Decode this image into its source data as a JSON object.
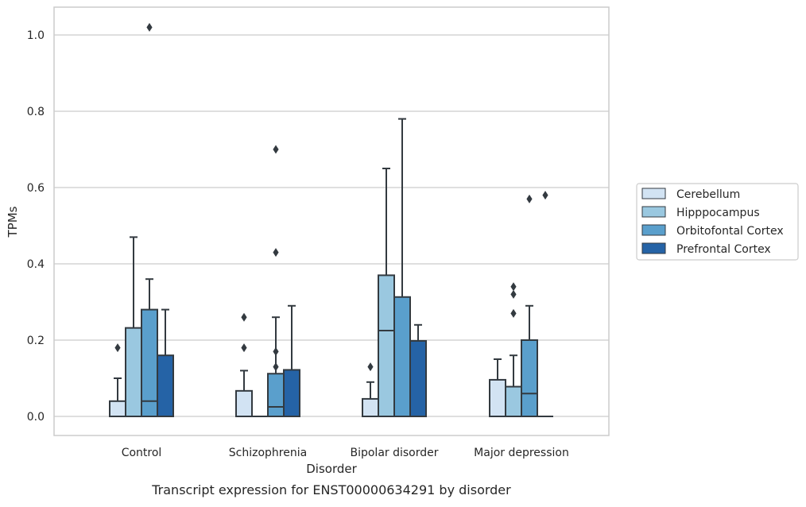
{
  "chart_data": {
    "type": "box",
    "title": "Transcript expression for ENST00000634291 by disorder",
    "xlabel": "Disorder",
    "ylabel": "TPMs",
    "ylim": [
      -0.05,
      1.07
    ],
    "yticks": [
      "0.0",
      "0.2",
      "0.4",
      "0.6",
      "0.8",
      "1.0"
    ],
    "ytick_values": [
      0.0,
      0.2,
      0.4,
      0.6,
      0.8,
      1.0
    ],
    "grid": true,
    "legend_position": "center-right",
    "categories": [
      "Control",
      "Schizophrenia",
      "Bipolar disorder",
      "Major depression"
    ],
    "series": [
      {
        "name": "Cerebellum",
        "color": "#d2e3f3",
        "boxes": [
          {
            "q1": 0.0,
            "median": 0.0,
            "q3": 0.04,
            "whisker_low": 0.0,
            "whisker_high": 0.1,
            "outliers": [
              0.18
            ]
          },
          {
            "q1": 0.0,
            "median": 0.0,
            "q3": 0.067,
            "whisker_low": 0.0,
            "whisker_high": 0.12,
            "outliers": [
              0.18,
              0.26
            ]
          },
          {
            "q1": 0.0,
            "median": 0.0,
            "q3": 0.046,
            "whisker_low": 0.0,
            "whisker_high": 0.09,
            "outliers": [
              0.13
            ]
          },
          {
            "q1": 0.0,
            "median": 0.0,
            "q3": 0.096,
            "whisker_low": 0.0,
            "whisker_high": 0.15,
            "outliers": []
          }
        ]
      },
      {
        "name": "Hipppocampus",
        "color": "#9ac8e0",
        "boxes": [
          {
            "q1": 0.0,
            "median": 0.0,
            "q3": 0.232,
            "whisker_low": 0.0,
            "whisker_high": 0.47,
            "outliers": []
          },
          {
            "q1": 0.0,
            "median": 0.0,
            "q3": 0.0,
            "whisker_low": 0.0,
            "whisker_high": 0.0,
            "outliers": []
          },
          {
            "q1": 0.0,
            "median": 0.225,
            "q3": 0.37,
            "whisker_low": 0.0,
            "whisker_high": 0.65,
            "outliers": []
          },
          {
            "q1": 0.0,
            "median": 0.0,
            "q3": 0.078,
            "whisker_low": 0.0,
            "whisker_high": 0.16,
            "outliers": [
              0.27,
              0.32,
              0.34
            ]
          }
        ]
      },
      {
        "name": "Orbitofontal Cortex",
        "color": "#5a9fcc",
        "boxes": [
          {
            "q1": 0.0,
            "median": 0.04,
            "q3": 0.28,
            "whisker_low": 0.0,
            "whisker_high": 0.36,
            "outliers": [
              1.02
            ]
          },
          {
            "q1": 0.0,
            "median": 0.025,
            "q3": 0.112,
            "whisker_low": 0.0,
            "whisker_high": 0.26,
            "outliers": [
              0.13,
              0.17,
              0.43,
              0.7
            ]
          },
          {
            "q1": 0.0,
            "median": 0.0,
            "q3": 0.313,
            "whisker_low": 0.0,
            "whisker_high": 0.78,
            "outliers": []
          },
          {
            "q1": 0.0,
            "median": 0.06,
            "q3": 0.2,
            "whisker_low": 0.0,
            "whisker_high": 0.29,
            "outliers": [
              0.57
            ]
          }
        ]
      },
      {
        "name": "Prefrontal Cortex",
        "color": "#2563a6",
        "boxes": [
          {
            "q1": 0.0,
            "median": 0.0,
            "q3": 0.16,
            "whisker_low": 0.0,
            "whisker_high": 0.28,
            "outliers": []
          },
          {
            "q1": 0.0,
            "median": 0.0,
            "q3": 0.122,
            "whisker_low": 0.0,
            "whisker_high": 0.29,
            "outliers": []
          },
          {
            "q1": 0.0,
            "median": 0.0,
            "q3": 0.198,
            "whisker_low": 0.0,
            "whisker_high": 0.24,
            "outliers": []
          },
          {
            "q1": 0.0,
            "median": 0.0,
            "q3": 0.0,
            "whisker_low": 0.0,
            "whisker_high": 0.0,
            "outliers": [
              0.58
            ]
          }
        ]
      }
    ]
  }
}
